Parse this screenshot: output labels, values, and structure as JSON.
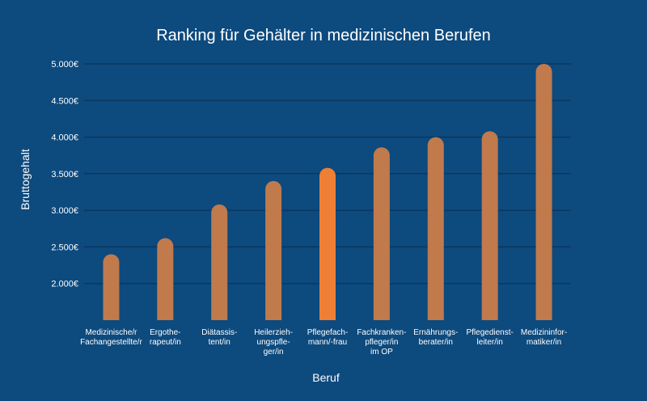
{
  "chart_data": {
    "type": "bar",
    "title": "Ranking für Gehälter in medizinischen Berufen",
    "xlabel": "Beruf",
    "ylabel": "Bruttogehalt",
    "ylim": [
      1500,
      5000
    ],
    "yticks": [
      2000,
      2500,
      3000,
      3500,
      4000,
      4500,
      5000
    ],
    "ytick_labels": [
      "2.000€",
      "2.500€",
      "3.000€",
      "3.500€",
      "4.000€",
      "4.500€",
      "5.000€"
    ],
    "grid": true,
    "categories": [
      [
        "Medizinische/r",
        "Fachangestellte/r"
      ],
      [
        "Ergothe-",
        "rapeut/in"
      ],
      [
        "Diätassis-",
        "tent/in"
      ],
      [
        "Heilerzieh-",
        "ungspfle-",
        "ger/in"
      ],
      [
        "Pflegefach-",
        "mann/-frau"
      ],
      [
        "Fachkranken-",
        "pfleger/in",
        "im OP"
      ],
      [
        "Ernährungs-",
        "berater/in"
      ],
      [
        "Pflegedienst-",
        "leiter/in"
      ],
      [
        "Medizininfor-",
        "matiker/in"
      ]
    ],
    "values": [
      2400,
      2620,
      3080,
      3400,
      3580,
      3860,
      4000,
      4080,
      5000
    ],
    "highlight_index": 4,
    "colors": {
      "background": "#0d4a7e",
      "bar": "#c07a4c",
      "highlight": "#ef7f34",
      "grid": "#0b2f52",
      "text": "#ffffff"
    }
  }
}
